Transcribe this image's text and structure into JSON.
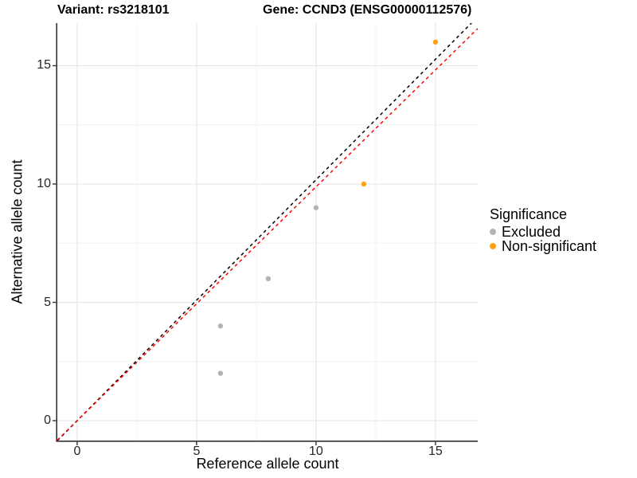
{
  "chart_data": {
    "type": "scatter",
    "titles": {
      "left": "Variant: rs3218101",
      "right": "Gene: CCND3 (ENSG00000112576)"
    },
    "xlabel": "Reference allele count",
    "ylabel": "Alternative allele count",
    "xlim": [
      -0.83,
      16.77
    ],
    "ylim": [
      -0.84,
      16.8
    ],
    "x_ticks": [
      0,
      5,
      10,
      15
    ],
    "y_ticks": [
      0,
      5,
      10,
      15
    ],
    "x_minor_ticks": [
      2.5,
      7.5,
      12.5
    ],
    "y_minor_ticks": [
      2.5,
      7.5,
      12.5
    ],
    "grid": true,
    "legend_position": "right",
    "series": [
      {
        "name": "Excluded",
        "color": "#B3B3B3",
        "points": [
          [
            6,
            2
          ],
          [
            6,
            4
          ],
          [
            8,
            6
          ],
          [
            10,
            9
          ]
        ]
      },
      {
        "name": "Non-significant",
        "color": "#FFA113",
        "points": [
          [
            12,
            10
          ],
          [
            15,
            16
          ]
        ]
      }
    ],
    "ablines": [
      {
        "name": "identity-line-black",
        "color": "#000000",
        "slope": 1.018,
        "intercept": 0,
        "dash": "4 4"
      },
      {
        "name": "fitted-line-red",
        "color": "#FF0000",
        "slope": 0.988,
        "intercept": 0,
        "dash": "4 4"
      }
    ],
    "legend": {
      "title": "Significance",
      "items": [
        {
          "label": "Excluded",
          "color": "#B3B3B3"
        },
        {
          "label": "Non-significant",
          "color": "#FFA113"
        }
      ]
    },
    "style": {
      "major_grid_color": "#E5E5E5",
      "minor_grid_color": "#F1F1F1",
      "axis_line_color": "#333333",
      "tick_color": "#333333",
      "point_radius": 3.2
    }
  }
}
